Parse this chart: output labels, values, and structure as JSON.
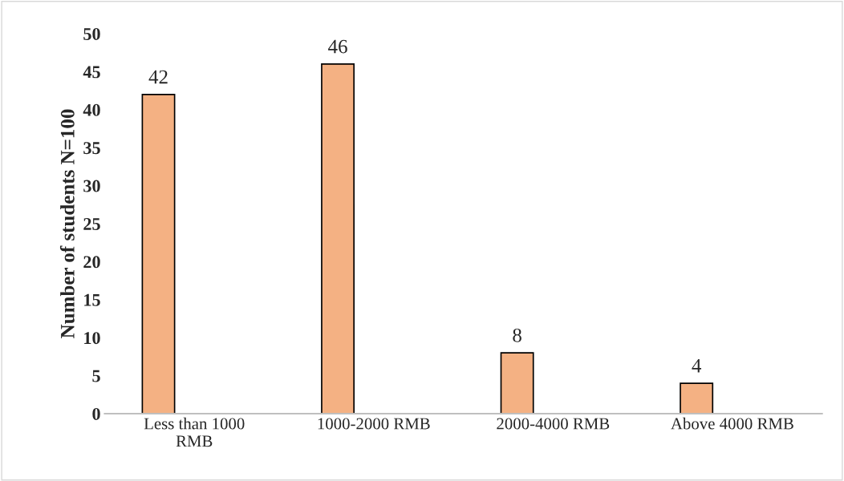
{
  "chart_data": {
    "type": "bar",
    "ylabel": "Number of students N=100",
    "categories": [
      "Less than 1000\nRMB",
      "1000-2000 RMB",
      "2000-4000 RMB",
      "Above 4000 RMB"
    ],
    "values": [
      42,
      46,
      8,
      4
    ],
    "color": "#f4b183",
    "ylim": [
      0,
      50
    ],
    "yticks": [
      0,
      5,
      10,
      15,
      20,
      25,
      30,
      35,
      40,
      45,
      50
    ],
    "grid": false,
    "data_labels": true
  }
}
